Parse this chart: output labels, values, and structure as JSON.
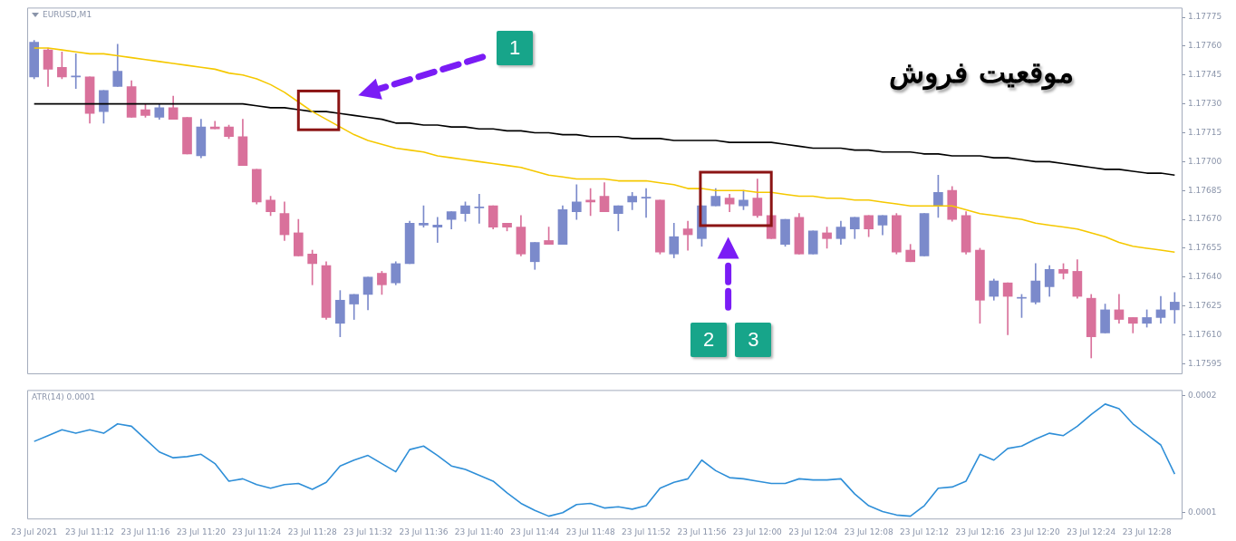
{
  "chart_data": [
    {
      "type": "candlestick",
      "title": "EURUSD,M1",
      "categories": [
        null,
        null,
        null,
        null,
        null,
        null,
        null,
        null,
        null,
        null,
        null,
        null,
        null,
        null,
        null,
        null,
        null,
        null,
        null,
        null,
        null,
        null,
        null,
        null,
        null,
        null,
        null,
        null,
        null,
        null,
        null,
        null,
        null,
        null,
        null,
        null,
        null,
        null,
        null,
        null,
        null,
        null,
        null,
        null,
        null,
        null,
        null,
        null,
        null,
        null,
        null,
        null,
        null,
        null,
        null,
        null,
        null,
        null,
        null,
        null,
        null,
        null,
        null,
        null,
        null,
        null,
        null,
        null,
        null,
        null,
        null,
        null,
        null,
        null,
        null,
        null,
        null,
        null,
        null,
        null,
        null,
        null,
        null
      ],
      "series": [
        {
          "type": "candlestick",
          "ohlc": [
            [
              1.17744,
              1.17763,
              1.17743,
              1.17762
            ],
            [
              1.17758,
              1.17759,
              1.17739,
              1.17748
            ],
            [
              1.17749,
              1.17757,
              1.17743,
              1.17744
            ],
            [
              1.17744,
              1.17756,
              1.17738,
              1.17744
            ],
            [
              1.17744,
              1.17744,
              1.1772,
              1.17725
            ],
            [
              1.17726,
              1.17737,
              1.1772,
              1.17737
            ],
            [
              1.17739,
              1.17761,
              1.17739,
              1.17747
            ],
            [
              1.17739,
              1.17742,
              1.17723,
              1.17723
            ],
            [
              1.17727,
              1.1773,
              1.17723,
              1.17724
            ],
            [
              1.17723,
              1.1773,
              1.17722,
              1.17728
            ],
            [
              1.17728,
              1.17734,
              1.17722,
              1.17722
            ],
            [
              1.17723,
              1.17723,
              1.17704,
              1.17704
            ],
            [
              1.17703,
              1.17722,
              1.17702,
              1.17718
            ],
            [
              1.17718,
              1.17721,
              1.17717,
              1.17717
            ],
            [
              1.17718,
              1.17719,
              1.17712,
              1.17713
            ],
            [
              1.17713,
              1.17722,
              1.17698,
              1.17698
            ],
            [
              1.17696,
              1.17696,
              1.17678,
              1.17679
            ],
            [
              1.1768,
              1.17682,
              1.17672,
              1.17674
            ],
            [
              1.17673,
              1.17679,
              1.17659,
              1.17662
            ],
            [
              1.17663,
              1.1767,
              1.17651,
              1.17651
            ],
            [
              1.17652,
              1.17654,
              1.17636,
              1.17647
            ],
            [
              1.17646,
              1.17648,
              1.17618,
              1.17619
            ],
            [
              1.17616,
              1.17633,
              1.17609,
              1.17628
            ],
            [
              1.17626,
              1.17631,
              1.17618,
              1.17631
            ],
            [
              1.17631,
              1.1764,
              1.17623,
              1.1764
            ],
            [
              1.17642,
              1.17643,
              1.17631,
              1.17636
            ],
            [
              1.17637,
              1.17648,
              1.17636,
              1.17647
            ],
            [
              1.17647,
              1.17669,
              1.17647,
              1.17668
            ],
            [
              1.17667,
              1.17677,
              1.17666,
              1.17668
            ],
            [
              1.17666,
              1.17671,
              1.17658,
              1.17667
            ],
            [
              1.1767,
              1.17674,
              1.17665,
              1.17674
            ],
            [
              1.17673,
              1.17679,
              1.17669,
              1.17677
            ],
            [
              1.17676,
              1.17683,
              1.17668,
              1.17676
            ],
            [
              1.17677,
              1.17677,
              1.17665,
              1.17666
            ],
            [
              1.17668,
              1.17668,
              1.17664,
              1.17666
            ],
            [
              1.17666,
              1.17672,
              1.17651,
              1.17652
            ],
            [
              1.17648,
              1.17658,
              1.17644,
              1.17658
            ],
            [
              1.17659,
              1.17666,
              1.17657,
              1.17657
            ],
            [
              1.17657,
              1.17677,
              1.17657,
              1.17675
            ],
            [
              1.17674,
              1.17688,
              1.1767,
              1.17679
            ],
            [
              1.1768,
              1.17686,
              1.17672,
              1.17679
            ],
            [
              1.17682,
              1.17689,
              1.17674,
              1.17674
            ],
            [
              1.17673,
              1.17677,
              1.17664,
              1.17677
            ],
            [
              1.17679,
              1.17684,
              1.17675,
              1.17682
            ],
            [
              1.17681,
              1.17686,
              1.17671,
              1.17681
            ],
            [
              1.1768,
              1.1768,
              1.17652,
              1.17653
            ],
            [
              1.17652,
              1.17668,
              1.1765,
              1.17661
            ],
            [
              1.17665,
              1.17669,
              1.17654,
              1.17662
            ],
            [
              1.1766,
              1.17677,
              1.17656,
              1.17677
            ],
            [
              1.17677,
              1.17686,
              1.17677,
              1.17682
            ],
            [
              1.17681,
              1.17683,
              1.17674,
              1.17678
            ],
            [
              1.17677,
              1.17685,
              1.17675,
              1.1768
            ],
            [
              1.17681,
              1.17691,
              1.17671,
              1.17672
            ],
            [
              1.17672,
              1.17672,
              1.1766,
              1.1766
            ],
            [
              1.17657,
              1.1767,
              1.17656,
              1.1767
            ],
            [
              1.17671,
              1.17673,
              1.17652,
              1.17652
            ],
            [
              1.17652,
              1.17664,
              1.17652,
              1.17664
            ],
            [
              1.17663,
              1.17666,
              1.17655,
              1.1766
            ],
            [
              1.1766,
              1.17669,
              1.17657,
              1.17666
            ],
            [
              1.17665,
              1.17671,
              1.1766,
              1.17671
            ],
            [
              1.17672,
              1.17672,
              1.17661,
              1.17665
            ],
            [
              1.17667,
              1.17672,
              1.17662,
              1.17672
            ],
            [
              1.17672,
              1.17673,
              1.17652,
              1.17653
            ],
            [
              1.17654,
              1.17657,
              1.17648,
              1.17648
            ],
            [
              1.17651,
              1.17673,
              1.17651,
              1.17673
            ],
            [
              1.17677,
              1.17693,
              1.17671,
              1.17684
            ],
            [
              1.17685,
              1.17687,
              1.17669,
              1.1767
            ],
            [
              1.17672,
              1.17674,
              1.17652,
              1.17653
            ],
            [
              1.17654,
              1.17655,
              1.17616,
              1.17628
            ],
            [
              1.1763,
              1.17639,
              1.17628,
              1.17638
            ],
            [
              1.17637,
              1.17637,
              1.1761,
              1.1763
            ],
            [
              1.17629,
              1.17631,
              1.17619,
              1.17629
            ],
            [
              1.17627,
              1.17647,
              1.17626,
              1.17638
            ],
            [
              1.17635,
              1.17646,
              1.1763,
              1.17644
            ],
            [
              1.17644,
              1.17647,
              1.17639,
              1.17642
            ],
            [
              1.17643,
              1.17649,
              1.17629,
              1.1763
            ],
            [
              1.17629,
              1.17631,
              1.17598,
              1.17609
            ],
            [
              1.17611,
              1.17626,
              1.17611,
              1.17623
            ],
            [
              1.17623,
              1.17631,
              1.17616,
              1.17618
            ],
            [
              1.17619,
              1.17619,
              1.17611,
              1.17616
            ],
            [
              1.17616,
              1.17623,
              1.17614,
              1.17619
            ],
            [
              1.17619,
              1.1763,
              1.17616,
              1.17623
            ],
            [
              1.17623,
              1.17632,
              1.17616,
              1.17627
            ]
          ],
          "colors": [
            "#7b8acb",
            "#d9719b",
            "#d9719b",
            "#7b8acb",
            "#d9719b",
            "#7b8acb",
            "#7b8acb",
            "#d9719b",
            "#d9719b",
            "#7b8acb",
            "#d9719b",
            "#d9719b",
            "#7b8acb",
            "#d9719b",
            "#d9719b",
            "#d9719b",
            "#d9719b",
            "#d9719b",
            "#d9719b",
            "#d9719b",
            "#d9719b",
            "#d9719b",
            "#7b8acb",
            "#7b8acb",
            "#7b8acb",
            "#d9719b",
            "#7b8acb",
            "#7b8acb",
            "#7b8acb",
            "#7b8acb",
            "#7b8acb",
            "#7b8acb",
            "#7b8acb",
            "#d9719b",
            "#d9719b",
            "#d9719b",
            "#7b8acb",
            "#d9719b",
            "#7b8acb",
            "#7b8acb",
            "#d9719b",
            "#d9719b",
            "#7b8acb",
            "#7b8acb",
            "#7b8acb",
            "#d9719b",
            "#7b8acb",
            "#d9719b",
            "#7b8acb",
            "#7b8acb",
            "#d9719b",
            "#7b8acb",
            "#d9719b",
            "#d9719b",
            "#7b8acb",
            "#d9719b",
            "#7b8acb",
            "#d9719b",
            "#7b8acb",
            "#7b8acb",
            "#d9719b",
            "#7b8acb",
            "#d9719b",
            "#d9719b",
            "#7b8acb",
            "#7b8acb",
            "#d9719b",
            "#d9719b",
            "#d9719b",
            "#7b8acb",
            "#d9719b",
            "#7b8acb",
            "#7b8acb",
            "#7b8acb",
            "#d9719b",
            "#d9719b",
            "#d9719b",
            "#7b8acb",
            "#d9719b",
            "#d9719b",
            "#7b8acb",
            "#7b8acb",
            "#7b8acb"
          ]
        },
        {
          "type": "line",
          "color": "#f5c800",
          "values": [
            1.17759,
            1.17759,
            1.17758,
            1.17757,
            1.17756,
            1.17756,
            1.17755,
            1.17754,
            1.17753,
            1.17752,
            1.17751,
            1.1775,
            1.17749,
            1.17748,
            1.17746,
            1.17745,
            1.17743,
            1.1774,
            1.17736,
            1.17731,
            1.17726,
            1.17722,
            1.17718,
            1.17714,
            1.17711,
            1.17709,
            1.17707,
            1.17706,
            1.17705,
            1.17703,
            1.17702,
            1.17701,
            1.177,
            1.17699,
            1.17698,
            1.17697,
            1.17695,
            1.17693,
            1.17692,
            1.17691,
            1.17691,
            1.17691,
            1.1769,
            1.1769,
            1.1769,
            1.17689,
            1.17688,
            1.17686,
            1.17686,
            1.17685,
            1.17685,
            1.17685,
            1.17684,
            1.17684,
            1.17683,
            1.17682,
            1.17682,
            1.17681,
            1.17681,
            1.1768,
            1.1768,
            1.17679,
            1.17678,
            1.17677,
            1.17677,
            1.17677,
            1.17677,
            1.17675,
            1.17673,
            1.17672,
            1.17671,
            1.1767,
            1.17668,
            1.17667,
            1.17666,
            1.17665,
            1.17663,
            1.17661,
            1.17658,
            1.17656,
            1.17655,
            1.17654,
            1.17653
          ]
        },
        {
          "type": "line",
          "color": "#000000",
          "values": [
            1.1773,
            1.1773,
            1.1773,
            1.1773,
            1.1773,
            1.1773,
            1.1773,
            1.1773,
            1.1773,
            1.1773,
            1.1773,
            1.1773,
            1.1773,
            1.1773,
            1.1773,
            1.1773,
            1.17729,
            1.17728,
            1.17728,
            1.17727,
            1.17726,
            1.17726,
            1.17725,
            1.17724,
            1.17723,
            1.17722,
            1.1772,
            1.1772,
            1.17719,
            1.17719,
            1.17718,
            1.17718,
            1.17717,
            1.17717,
            1.17716,
            1.17716,
            1.17715,
            1.17715,
            1.17714,
            1.17714,
            1.17713,
            1.17713,
            1.17713,
            1.17712,
            1.17712,
            1.17712,
            1.17711,
            1.17711,
            1.17711,
            1.17711,
            1.1771,
            1.1771,
            1.1771,
            1.1771,
            1.17709,
            1.17708,
            1.17707,
            1.17707,
            1.17707,
            1.17706,
            1.17706,
            1.17705,
            1.17705,
            1.17705,
            1.17704,
            1.17704,
            1.17703,
            1.17703,
            1.17703,
            1.17702,
            1.17702,
            1.17701,
            1.177,
            1.177,
            1.17699,
            1.17698,
            1.17697,
            1.17696,
            1.17696,
            1.17695,
            1.17694,
            1.17694,
            1.17693
          ]
        }
      ],
      "ylim": [
        1.1759,
        1.1778
      ],
      "yticks": [
        1.17595,
        {
          "value": 1.1761,
          "label": "1.17610"
        },
        1.17625,
        {
          "value": 1.1764,
          "label": "1.17640"
        },
        1.17655,
        {
          "value": 1.1767,
          "label": "1.17670"
        },
        1.17685,
        {
          "value": 1.177,
          "label": "1.17700"
        },
        1.17715,
        {
          "value": 1.1773,
          "label": "1.17730"
        },
        1.17745,
        {
          "value": 1.1776,
          "label": "1.17760"
        },
        1.17775
      ],
      "tick_labels": "y",
      "annotations": [
        "موقعیت فروش",
        "1",
        "2",
        "3"
      ]
    },
    {
      "type": "line",
      "title": "ATR(14) 0.0001",
      "categories": [
        "23 Jul 2021",
        null,
        null,
        null,
        "23 Jul 11:12",
        null,
        null,
        null,
        "23 Jul 11:16",
        null,
        null,
        null,
        "23 Jul 11:20",
        null,
        null,
        null,
        "23 Jul 11:24",
        null,
        null,
        null,
        "23 Jul 11:28",
        null,
        null,
        null,
        "23 Jul 11:32",
        null,
        null,
        null,
        "23 Jul 11:36",
        null,
        null,
        null,
        "23 Jul 11:40",
        null,
        null,
        null,
        "23 Jul 11:44",
        null,
        null,
        null,
        "23 Jul 11:48",
        null,
        null,
        null,
        "23 Jul 11:52",
        null,
        null,
        null,
        "23 Jul 11:56",
        null,
        null,
        null,
        "23 Jul 12:00",
        null,
        null,
        null,
        "23 Jul 12:04",
        null,
        null,
        null,
        "23 Jul 12:08",
        null,
        null,
        null,
        "23 Jul 12:12",
        null,
        null,
        null,
        "23 Jul 12:16",
        null,
        null,
        null,
        "23 Jul 12:20",
        null,
        null,
        null,
        "23 Jul 12:24",
        null,
        null,
        null,
        "23 Jul 12:28",
        null,
        null
      ],
      "color": "#2f8fd8",
      "values": [
        0.000161,
        0.000166,
        0.000171,
        0.000168,
        0.000171,
        0.000168,
        0.000176,
        0.000174,
        0.000163,
        0.000152,
        0.000147,
        0.000148,
        0.00015,
        0.000142,
        0.000127,
        0.000129,
        0.000124,
        0.000121,
        0.000124,
        0.000125,
        0.00012,
        0.000126,
        0.00014,
        0.000145,
        0.000149,
        0.000142,
        0.000135,
        0.000154,
        0.000157,
        0.000149,
        0.00014,
        0.000137,
        0.000132,
        0.000127,
        0.000117,
        0.000108,
        0.000102,
        9.7e-05,
        0.0001,
        0.000107,
        0.000108,
        0.000104,
        0.000105,
        0.000103,
        0.000106,
        0.000121,
        0.000126,
        0.000129,
        0.000145,
        0.000136,
        0.00013,
        0.000129,
        0.000127,
        0.000125,
        0.000125,
        0.000129,
        0.000128,
        0.000128,
        0.000129,
        0.000116,
        0.000106,
        0.000101,
        9.8e-05,
        9.7e-05,
        0.000106,
        0.000121,
        0.000122,
        0.000127,
        0.00015,
        0.000145,
        0.000155,
        0.000157,
        0.000163,
        0.000168,
        0.000166,
        0.000174,
        0.000184,
        0.000193,
        0.000189,
        0.000176,
        0.000167,
        0.000158,
        0.000133
      ],
      "ylim": [
        9.5e-05,
        0.000205
      ],
      "yticks": [
        0.0001,
        0.0002
      ]
    }
  ]
}
